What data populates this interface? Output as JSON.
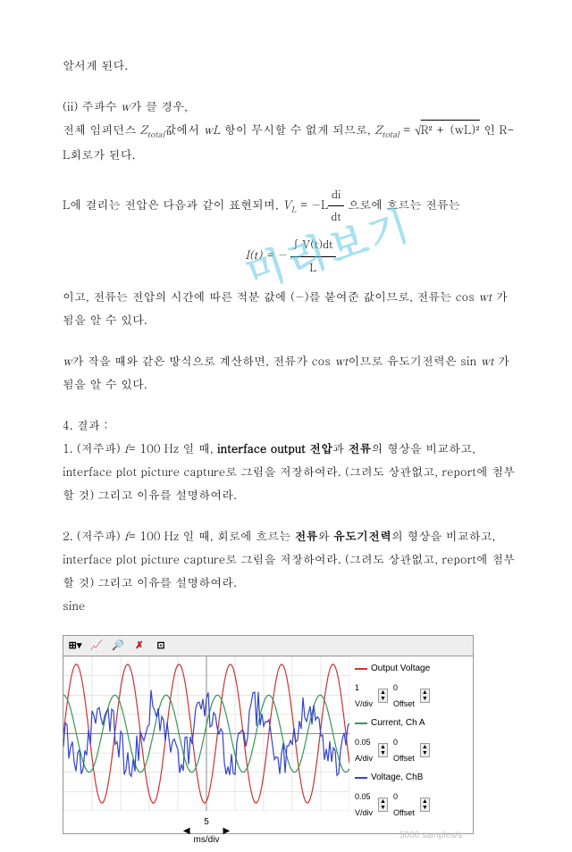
{
  "watermark": "미리보기",
  "p1": "알서게 된다.",
  "p2a": "(ii) 주파수 ",
  "p2b": "가 클 경우,",
  "p2_w": "w",
  "p3a": "전체 임피던스 ",
  "p3_z": "Z",
  "p3_sub": "total",
  "p3b": "값에서 ",
  "p3_wl": "wL",
  "p3c": " 항이 무시할 수 없게 되므로, ",
  "p3_eq": " = ",
  "p3_sqrt": "R² + (wL)²",
  "p3d": "인 R-L회로가 된다.",
  "p4a": "L에 걸리는 전압은 다음과 같이 표현되며, ",
  "p4_vl": "V",
  "p4_vlsub": "L",
  "p4b": " = −L",
  "p4_num": "di",
  "p4_den": "dt",
  "p4c": " 으로에 흐르는 전류는",
  "p5_it": "I(t) = −",
  "p5_num": "∫ V(t)dt",
  "p5_den": "L",
  "p6a": "이고, 전류는 전압의 시간에 따른 적분 값에 (−)를 붙여준 값이므로, 전류는 cos ",
  "p6_wt": "wt",
  "p6b": " 가 됨을 알 수 있다.",
  "p7a": "w",
  "p7b": "가 작을 때와 같은 방식으로 계산하면, 전류가 cos ",
  "p7c": "이므로 유도기전력은 sin ",
  "p7d": " 가 됨을 알 수 있다.",
  "h4": "4. 결과 :",
  "q1a": "1. (저주파) ",
  "q1_f": "f",
  "q1b": "= 100 Hz 일 때, ",
  "q1_bold1": "interface output 전압",
  "q1c": "과 ",
  "q1_bold2": "전류",
  "q1d": "의 형상을 비교하고, interface plot picture capture로 그림을 저장하여라. (그려도 상관없고, report에 첨부할 것) 그리고 이유를 설명하여라.",
  "q2a": "2. (저주파) ",
  "q2b": "= 100 Hz 일 때, 회로에 흐르는 ",
  "q2_bold1": "전류",
  "q2c": "와 ",
  "q2_bold2": "유도기전력",
  "q2d": "의 형상을 비교하고, interface plot picture capture로 그림을 저장하여라. (그려도 상관없고, report에 첨부할 것) 그리고 이유를 설명하여라.",
  "sine": "sine",
  "toolbar": {
    "icons": [
      "⊞▾",
      "📈",
      "🔎",
      "✗",
      "⊡"
    ]
  },
  "chart": {
    "grid_color": "#cccccc",
    "axis_color": "#888888",
    "bg": "#ffffff",
    "xlim": [
      0,
      10
    ],
    "ylim": [
      -1,
      1
    ],
    "grid_x": 10,
    "grid_y": 8,
    "series": [
      {
        "name": "Output Voltage",
        "color": "#cc3333",
        "amp": 0.9,
        "freq": 3.5,
        "phase": 0,
        "noise": 0
      },
      {
        "name": "Current, Ch A",
        "color": "#339955",
        "amp": 0.5,
        "freq": 3.5,
        "phase": 1.57,
        "noise": 0
      },
      {
        "name": "Voltage, ChB",
        "color": "#3344cc",
        "amp": 0.35,
        "freq": 3.5,
        "phase": 3.0,
        "noise": 0.25
      }
    ],
    "legend": [
      {
        "label": "Output Voltage",
        "color": "#cc3333",
        "v1": "1",
        "u1": "V/div",
        "v2": "0",
        "u2": "Offset"
      },
      {
        "label": "Current, Ch A",
        "color": "#339955",
        "v1": "0.05",
        "u1": "A/div",
        "v2": "0",
        "u2": "Offset"
      },
      {
        "label": "Voltage, ChB",
        "color": "#3344cc",
        "v1": "0.05",
        "u1": "V/div",
        "v2": "0",
        "u2": "Offset"
      }
    ],
    "xaxis": {
      "value": "5",
      "unit": "ms/div"
    },
    "samples": "5000 samples/s"
  }
}
